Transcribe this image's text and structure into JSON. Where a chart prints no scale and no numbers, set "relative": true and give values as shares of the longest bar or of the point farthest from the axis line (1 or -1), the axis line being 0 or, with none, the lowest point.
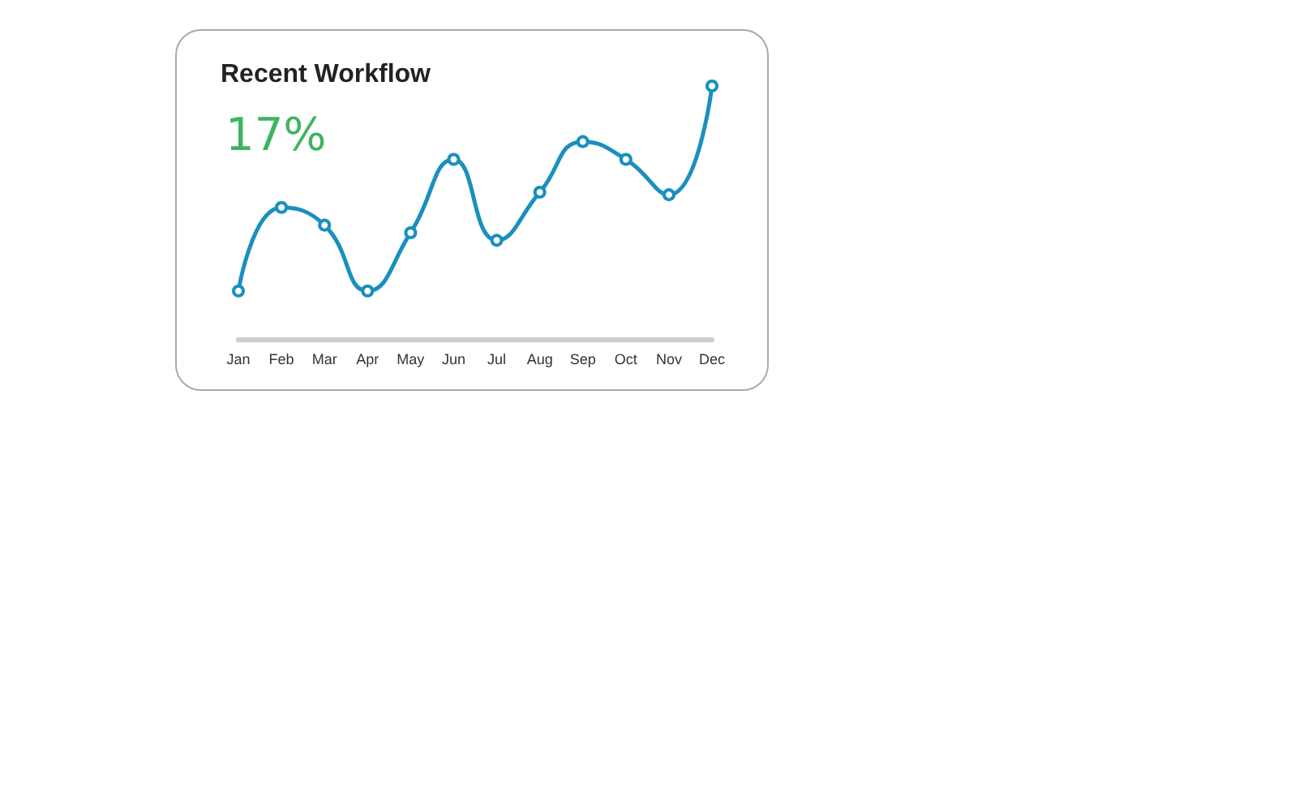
{
  "chart_data": {
    "type": "line",
    "title": "Recent Workflow",
    "annotations": [
      "17%"
    ],
    "categories": [
      "Jan",
      "Feb",
      "Mar",
      "Apr",
      "May",
      "Jun",
      "Jul",
      "Aug",
      "Sep",
      "Oct",
      "Nov",
      "Dec"
    ],
    "series": [
      {
        "color": "#1a8fbf",
        "values": [
          0.19,
          0.52,
          0.45,
          0.19,
          0.42,
          0.71,
          0.39,
          0.58,
          0.78,
          0.71,
          0.57,
          1
        ]
      }
    ],
    "relative": true,
    "marker": "circle",
    "line_style": "solid"
  }
}
